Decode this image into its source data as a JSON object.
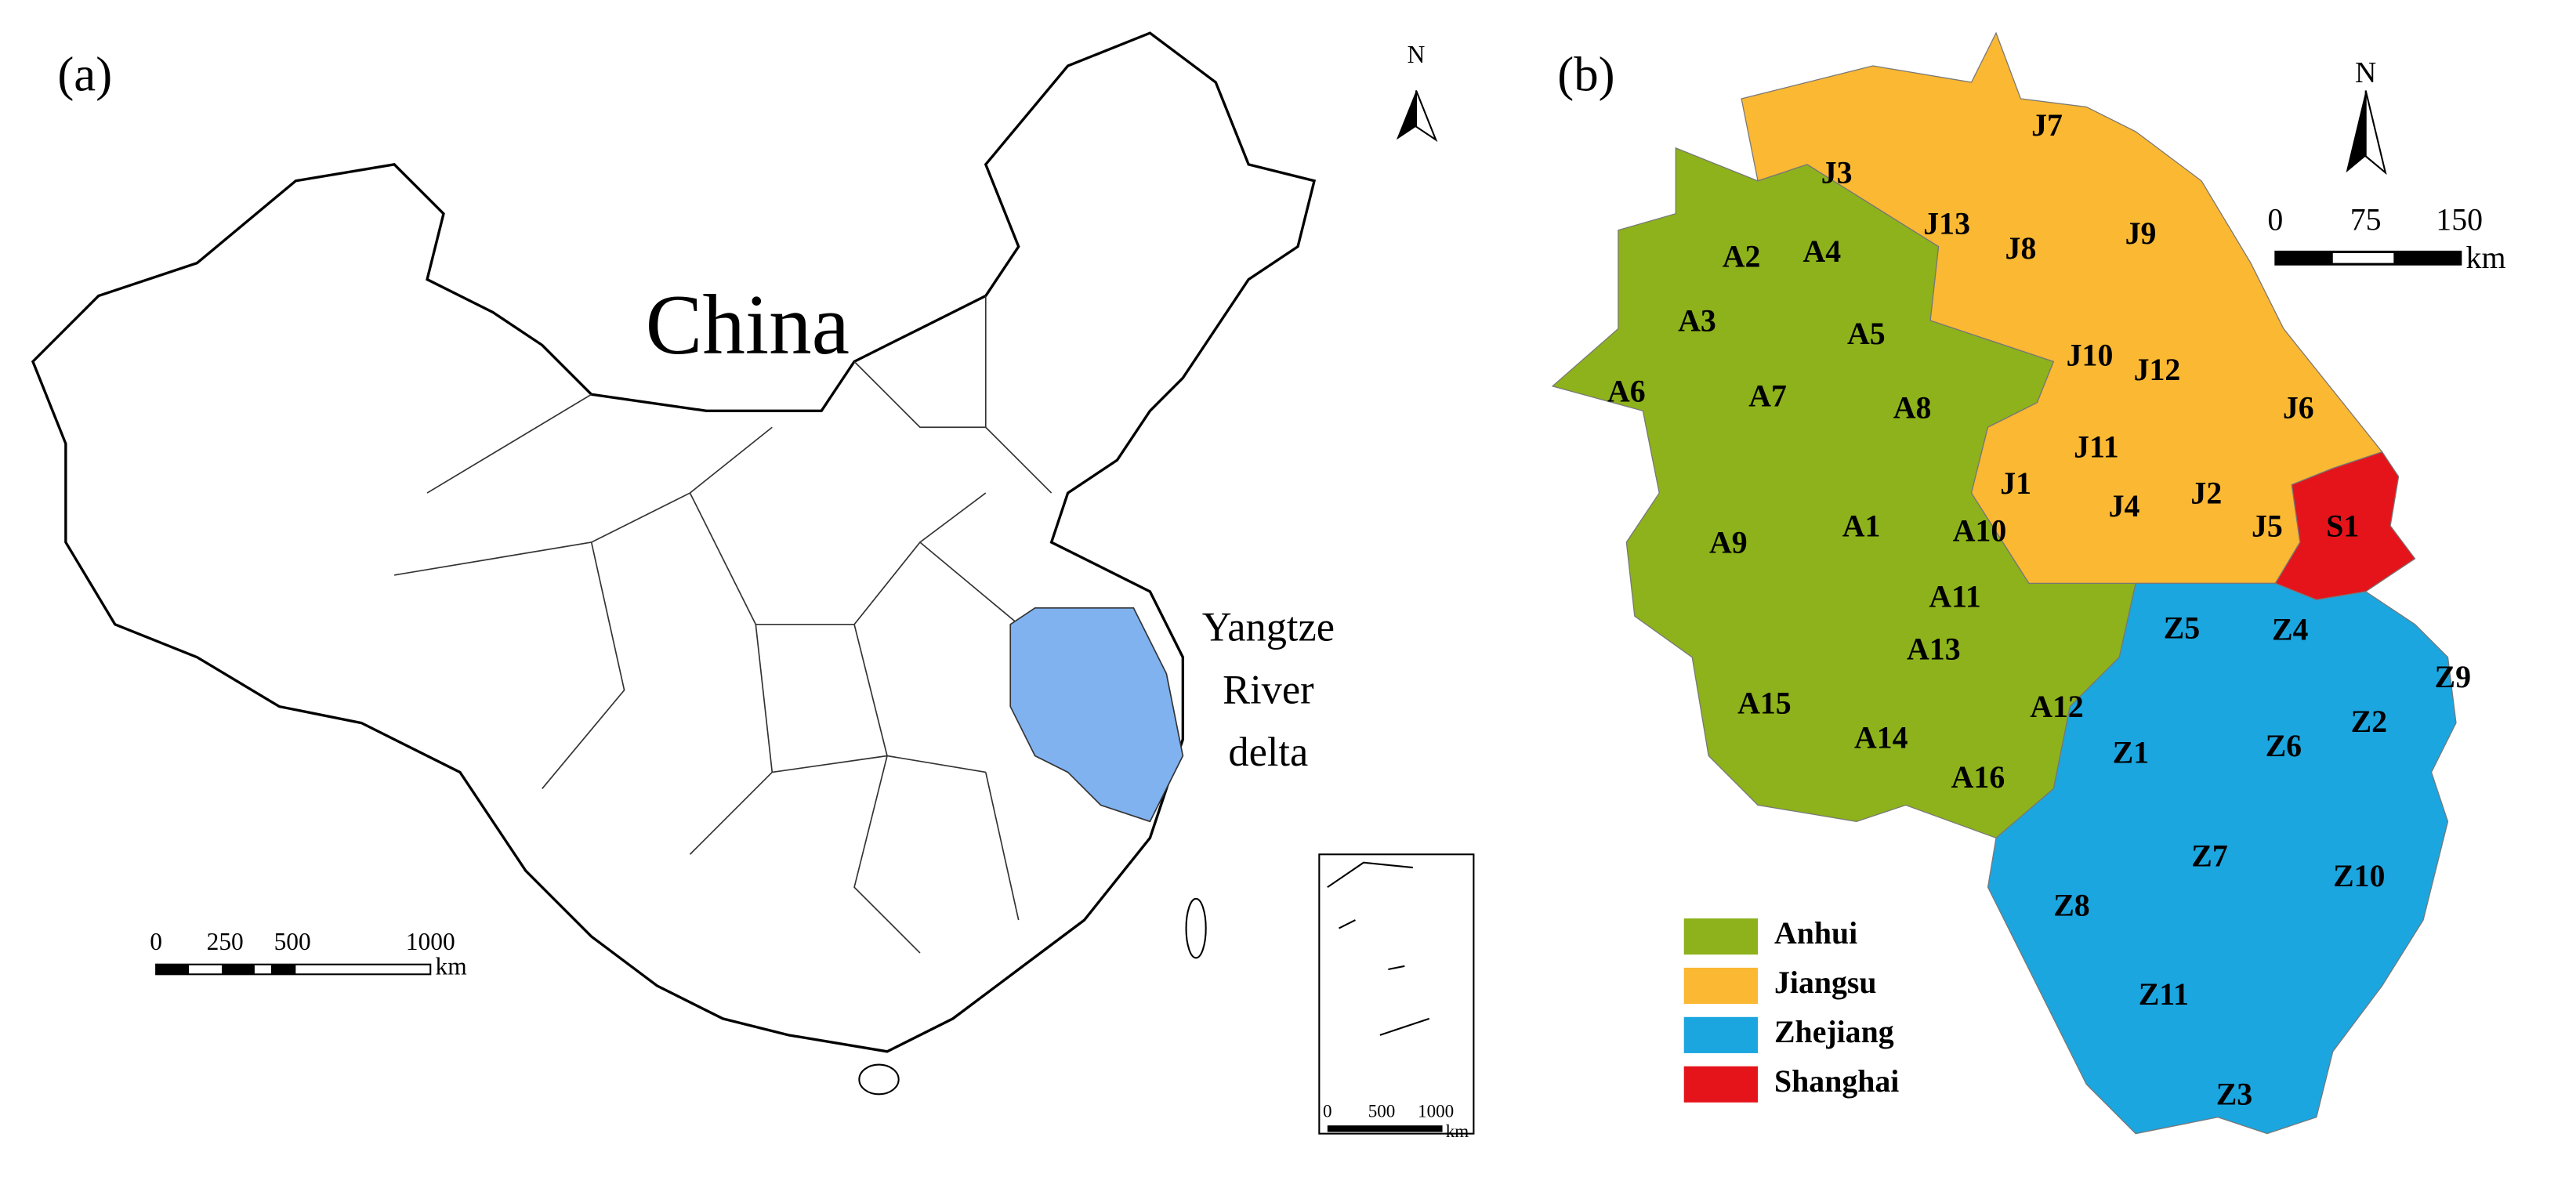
{
  "panel_a": {
    "label": "(a)",
    "north": "N",
    "country": "China",
    "highlight": {
      "lines": [
        "Yangtze",
        "River",
        "delta"
      ],
      "color": "#80b2f0"
    },
    "scale_bar": {
      "ticks": [
        0,
        250,
        500,
        1000
      ],
      "unit": "km"
    },
    "inset_scale_bar": {
      "ticks": [
        0,
        500,
        1000
      ],
      "unit": "km"
    }
  },
  "panel_b": {
    "label": "(b)",
    "north": "N",
    "scale_bar": {
      "ticks": [
        0,
        75,
        150
      ],
      "unit": "km"
    },
    "provinces": [
      {
        "name": "Anhui",
        "color": "#8db21b",
        "regions": [
          "A1",
          "A2",
          "A3",
          "A4",
          "A5",
          "A6",
          "A7",
          "A8",
          "A9",
          "A10",
          "A11",
          "A12",
          "A13",
          "A14",
          "A15",
          "A16"
        ]
      },
      {
        "name": "Jiangsu",
        "color": "#fbb833",
        "regions": [
          "J1",
          "J2",
          "J3",
          "J4",
          "J5",
          "J6",
          "J7",
          "J8",
          "J9",
          "J10",
          "J11",
          "J12",
          "J13"
        ]
      },
      {
        "name": "Zhejiang",
        "color": "#1ba6e0",
        "regions": [
          "Z1",
          "Z2",
          "Z3",
          "Z4",
          "Z5",
          "Z6",
          "Z7",
          "Z8",
          "Z9",
          "Z10",
          "Z11"
        ]
      },
      {
        "name": "Shanghai",
        "color": "#e5141b",
        "regions": [
          "S1"
        ]
      }
    ]
  }
}
